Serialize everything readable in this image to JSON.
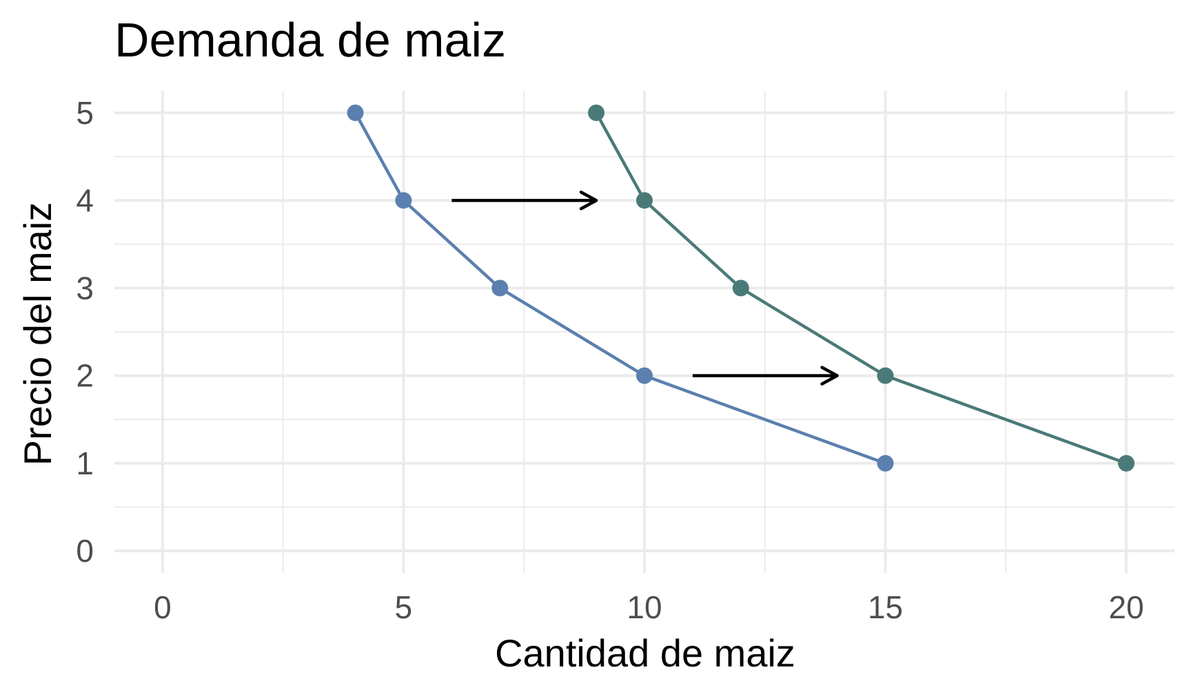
{
  "chart_data": {
    "type": "line",
    "title": "Demanda de maiz",
    "xlabel": "Cantidad de maiz",
    "ylabel": "Precio del maiz",
    "xlim": [
      -1,
      21
    ],
    "ylim": [
      -0.25,
      5.25
    ],
    "x_ticks": [
      "0",
      "5",
      "10",
      "15",
      "20"
    ],
    "y_ticks": [
      "0",
      "1",
      "2",
      "3",
      "4",
      "5"
    ],
    "grid": true,
    "legend": "none",
    "series": [
      {
        "color": "#5b7fae",
        "points": [
          {
            "x": 4,
            "y": 5
          },
          {
            "x": 5,
            "y": 4
          },
          {
            "x": 7,
            "y": 3
          },
          {
            "x": 10,
            "y": 2
          },
          {
            "x": 15,
            "y": 1
          }
        ]
      },
      {
        "color": "#4a7a78",
        "points": [
          {
            "x": 9,
            "y": 5
          },
          {
            "x": 10,
            "y": 4
          },
          {
            "x": 12,
            "y": 3
          },
          {
            "x": 15,
            "y": 2
          },
          {
            "x": 20,
            "y": 1
          }
        ]
      }
    ],
    "annotations": [
      {
        "type": "arrow",
        "x_from": 6,
        "x_to": 9,
        "y": 4,
        "color": "#000000"
      },
      {
        "type": "arrow",
        "x_from": 11,
        "x_to": 14,
        "y": 2,
        "color": "#000000"
      }
    ]
  }
}
